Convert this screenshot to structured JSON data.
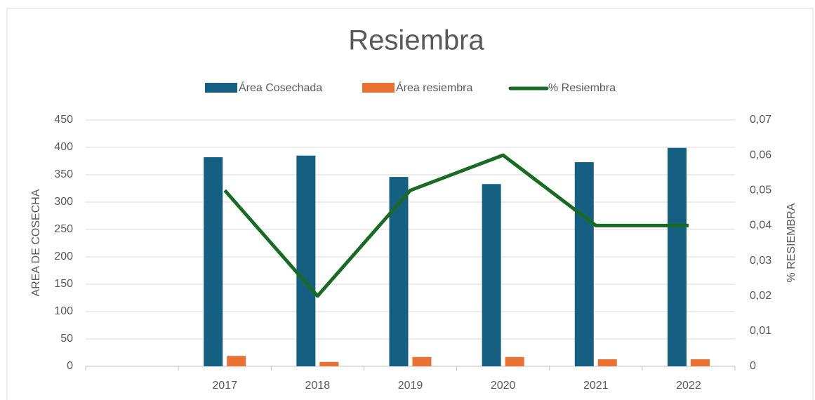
{
  "chart_data": {
    "type": "bar-line",
    "title": "Resiembra",
    "categories": [
      null,
      "2017",
      "2018",
      "2019",
      "2020",
      "2021",
      "2022"
    ],
    "series": [
      {
        "name": "Área Cosechada",
        "type": "bar",
        "color": "#156082",
        "values": [
          null,
          382,
          385,
          346,
          333,
          373,
          399
        ]
      },
      {
        "name": "Área resiembra",
        "type": "bar",
        "color": "#e97132",
        "values": [
          null,
          19,
          8,
          17,
          17,
          13,
          13
        ]
      },
      {
        "name": "% Resiembra",
        "type": "line",
        "axis": "y2",
        "color": "#196b24",
        "values": [
          null,
          0.05,
          0.02,
          0.05,
          0.06,
          0.04,
          0.04
        ]
      }
    ],
    "ylabel": "AREA DE COSECHA",
    "y2label": "% RESIEMBRA",
    "ylim": [
      0,
      450
    ],
    "yticks": [
      0,
      50,
      100,
      150,
      200,
      250,
      300,
      350,
      400,
      450
    ],
    "y2lim": [
      0,
      0.07
    ],
    "y2ticks": [
      0,
      {
        "value": 0.01,
        "label": "0,01"
      },
      {
        "value": 0.02,
        "label": "0,02"
      },
      {
        "value": 0.03,
        "label": "0,03"
      },
      {
        "value": 0.04,
        "label": "0,04"
      },
      {
        "value": 0.05,
        "label": "0,05"
      },
      {
        "value": 0.06,
        "label": "0,06"
      },
      {
        "value": 0.07,
        "label": "0,07"
      }
    ],
    "grid": true,
    "legend": "top"
  }
}
